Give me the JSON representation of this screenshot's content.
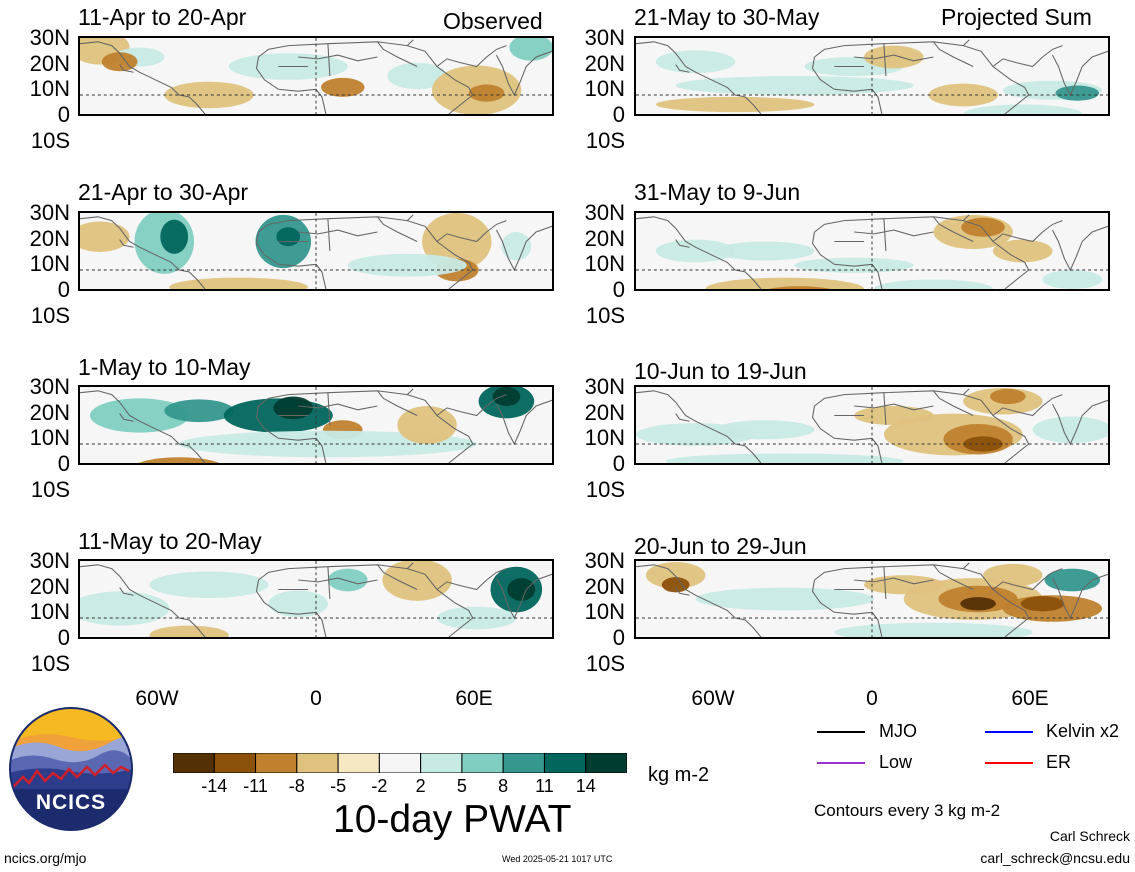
{
  "headers": {
    "left": "Observed",
    "right": "Projected Sum"
  },
  "panels": [
    {
      "title": "11-Apr to 20-Apr",
      "col": "left",
      "row": 0
    },
    {
      "title": "21-Apr to 30-Apr",
      "col": "left",
      "row": 1
    },
    {
      "title": "1-May to 10-May",
      "col": "left",
      "row": 2
    },
    {
      "title": "11-May to 20-May",
      "col": "left",
      "row": 3
    },
    {
      "title": "21-May to 30-May",
      "col": "right",
      "row": 0
    },
    {
      "title": "31-May to 9-Jun",
      "col": "right",
      "row": 1
    },
    {
      "title": "10-Jun to 19-Jun",
      "col": "right",
      "row": 2
    },
    {
      "title": "20-Jun to 29-Jun",
      "col": "right",
      "row": 3
    }
  ],
  "lat_labels": [
    "30N",
    "20N",
    "10N",
    "0",
    "10S"
  ],
  "lon_labels": [
    "60W",
    "0",
    "60E"
  ],
  "colorbar": {
    "ticks": [
      "-14",
      "-11",
      "-8",
      "-5",
      "-2",
      "2",
      "5",
      "8",
      "11",
      "14"
    ],
    "colors": [
      "#543005",
      "#8c5109",
      "#bf812d",
      "#dfc27d",
      "#f6e8c3",
      "#f5f5f5",
      "#c7eae5",
      "#80cdc1",
      "#35978f",
      "#01665e",
      "#003c30"
    ],
    "units": "kg m-2",
    "title": "10-day PWAT"
  },
  "legend": [
    {
      "label": "MJO",
      "color": "#000000"
    },
    {
      "label": "Kelvin x2",
      "color": "#0000ff"
    },
    {
      "label": "Low",
      "color": "#9933cc"
    },
    {
      "label": "ER",
      "color": "#ff0000"
    }
  ],
  "contour_note": "Contours every 3 kg m-2",
  "logo_text": "NCICS",
  "footer": {
    "url": "ncics.org/mjo",
    "timestamp": "Wed 2025-05-21 1017 UTC",
    "author": "Carl Schreck",
    "email": "carl_schreck@ncsu.edu"
  }
}
